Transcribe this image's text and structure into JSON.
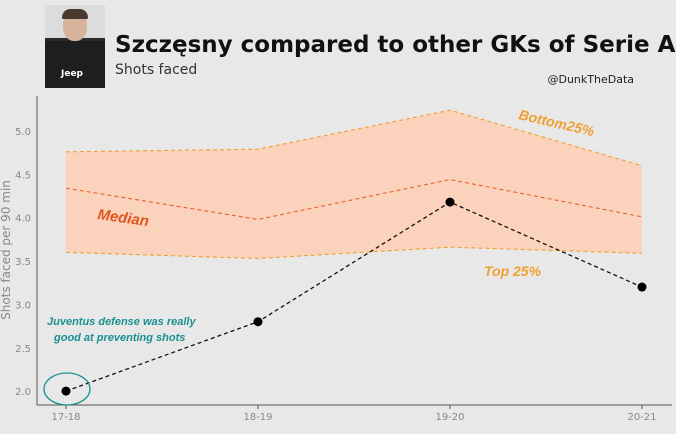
{
  "header": {
    "title": "Szczęsny compared to other GKs of Serie A",
    "subtitle": "Shots faced",
    "credit": "@DunkTheData",
    "photo_text": "Jeep"
  },
  "chart_data": {
    "type": "line",
    "title": "Szczęsny compared to other GKs of Serie A",
    "subtitle": "Shots faced",
    "xlabel": "",
    "ylabel": "Shots faced per 90 min",
    "categories": [
      "17-18",
      "18-19",
      "19-20",
      "20-21"
    ],
    "ylim": [
      1.84,
      5.4
    ],
    "yticks": [
      "2.0",
      "2.5",
      "3.0",
      "3.5",
      "4.0",
      "4.5",
      "5.0"
    ],
    "series": [
      {
        "name": "Bottom25%",
        "values": [
          4.76,
          4.79,
          5.24,
          4.6
        ],
        "color": "#f0a030"
      },
      {
        "name": "Median",
        "values": [
          4.34,
          3.98,
          4.44,
          4.01
        ],
        "color": "#e8622a"
      },
      {
        "name": "Top 25%",
        "values": [
          3.6,
          3.53,
          3.66,
          3.59
        ],
        "color": "#f0a030"
      },
      {
        "name": "Szczęsny",
        "values": [
          2.0,
          2.8,
          4.18,
          3.2
        ],
        "color": "#111111"
      }
    ],
    "band_color": "#fbd3bd",
    "annotations": {
      "bottom": "Bottom25%",
      "median": "Median",
      "top": "Top 25%",
      "note_line1": "Juventus defense was really",
      "note_line2": "good at preventing shots"
    },
    "grid": false
  }
}
